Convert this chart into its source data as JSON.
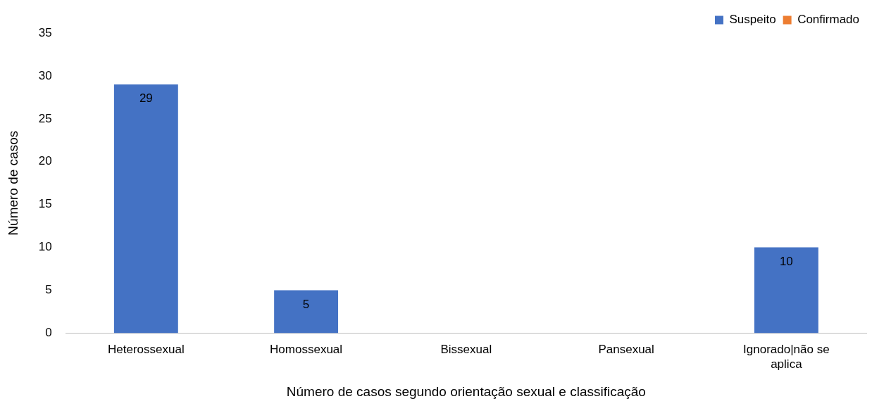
{
  "chart_data": {
    "type": "bar",
    "xlabel": "Número de casos segundo orientação sexual e classificação",
    "ylabel": "Número de casos",
    "categories": [
      "Heterossexual",
      "Homossexual",
      "Bissexual",
      "Pansexual",
      "Ignorado|não se aplica"
    ],
    "series": [
      {
        "name": "Suspeito",
        "color": "#4472c4",
        "values": [
          29,
          5,
          null,
          null,
          10
        ],
        "value_labels": [
          "29",
          "5",
          null,
          null,
          "10"
        ]
      },
      {
        "name": "Confirmado",
        "color": "#ed7d31",
        "values": [
          null,
          null,
          null,
          null,
          null
        ]
      }
    ],
    "ylim": [
      0,
      35
    ],
    "yticks": [
      0,
      5,
      10,
      15,
      20,
      25,
      30,
      35
    ],
    "grid": false,
    "legend": "top right"
  }
}
